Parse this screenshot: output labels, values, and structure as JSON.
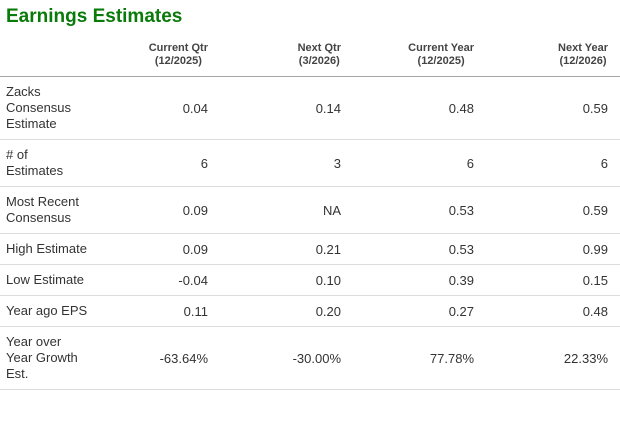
{
  "title": "Earnings Estimates",
  "colors": {
    "title_green": "#0a7a0a",
    "header_text": "#444444",
    "body_text": "#333333",
    "header_rule": "#a6a6a6",
    "row_rule": "#dcdcdc",
    "background": "#ffffff"
  },
  "table": {
    "columns": [
      {
        "line1": "Current Qtr",
        "line2": "(12/2025)"
      },
      {
        "line1": "Next Qtr",
        "line2": "(3/2026)"
      },
      {
        "line1": "Current Year",
        "line2": "(12/2025)"
      },
      {
        "line1": "Next Year",
        "line2": "(12/2026)"
      }
    ],
    "rows": [
      {
        "label": "Zacks Consensus Estimate",
        "values": [
          "0.04",
          "0.14",
          "0.48",
          "0.59"
        ]
      },
      {
        "label": "# of Estimates",
        "values": [
          "6",
          "3",
          "6",
          "6"
        ]
      },
      {
        "label": "Most Recent Consensus",
        "values": [
          "0.09",
          "NA",
          "0.53",
          "0.59"
        ]
      },
      {
        "label": "High Estimate",
        "values": [
          "0.09",
          "0.21",
          "0.53",
          "0.99"
        ]
      },
      {
        "label": "Low Estimate",
        "values": [
          "-0.04",
          "0.10",
          "0.39",
          "0.15"
        ]
      },
      {
        "label": "Year ago EPS",
        "values": [
          "0.11",
          "0.20",
          "0.27",
          "0.48"
        ]
      },
      {
        "label": "Year over Year Growth Est.",
        "values": [
          "-63.64%",
          "-30.00%",
          "77.78%",
          "22.33%"
        ]
      }
    ]
  }
}
